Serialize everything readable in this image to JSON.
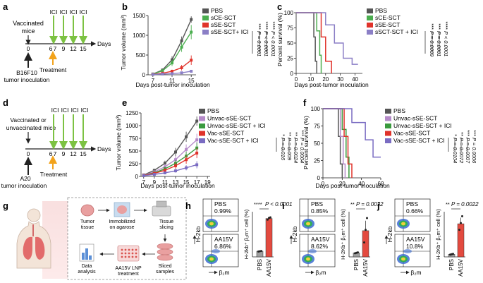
{
  "panels": {
    "a": {
      "letter": "a",
      "title_lines": [
        "Vaccinated",
        "mice"
      ],
      "ici": [
        "ICI",
        "ICI",
        "ICI",
        "ICI"
      ],
      "ticks": [
        "0",
        "6",
        "7",
        "9",
        "12",
        "15"
      ],
      "axis_end": "Days",
      "bottom_lines": [
        "B16F10",
        "tumor inoculation"
      ],
      "treatment": "Treatment"
    },
    "d": {
      "letter": "d",
      "title_lines": [
        "Vaccinated or",
        "unvaccinated mice"
      ],
      "ici": [
        "ICI",
        "ICI",
        "ICI",
        "ICI"
      ],
      "ticks": [
        "0",
        "6",
        "7",
        "9",
        "12",
        "15"
      ],
      "axis_end": "Days",
      "bottom_lines": [
        "A20",
        "tumor inoculation"
      ],
      "treatment": "Treatment"
    },
    "b": {
      "letter": "b",
      "ylabel": "Tumor volume (mm³)",
      "xlabel": "Days post-tumor inoculation",
      "yticks": [
        "0",
        "500",
        "1000",
        "1500"
      ],
      "xticks": [
        "7",
        "11",
        "15"
      ],
      "legend": [
        "PBS",
        "sCE-SCT",
        "sSE-SCT",
        "sSE-SCT+ ICI"
      ],
      "pvals": [
        "P = 0.0001",
        "P < 0.0001",
        "P < 0.0001"
      ],
      "stars": [
        "***",
        "****",
        "****"
      ]
    },
    "c": {
      "letter": "c",
      "ylabel": "Percent survival (%)",
      "xlabel": "Days post-tumor inoculation",
      "yticks": [
        "0",
        "25",
        "50",
        "75",
        "100"
      ],
      "xticks": [
        "0",
        "10",
        "20",
        "30",
        "40"
      ],
      "legend": [
        "PBS",
        "sCE-SCT",
        "sSE-SCT",
        "sSCT-SCT + ICI"
      ],
      "pvals": [
        "P = 0.0009",
        "P = 0.0001",
        "P < 0.0001"
      ],
      "stars": [
        "***",
        "***",
        "****"
      ]
    },
    "e": {
      "letter": "e",
      "ylabel": "Tumor volume (mm³)",
      "xlabel": "Days post-tumor inoculation",
      "yticks": [
        "0",
        "250",
        "500",
        "750",
        "1000",
        "1250"
      ],
      "xticks": [
        "7",
        "9",
        "11",
        "13",
        "15",
        "17",
        "19"
      ],
      "legend": [
        "PBS",
        "Unvac-sSE-SCT",
        "Unvac-sSE-SCT + ICI",
        "Vac-sSE-SCT",
        "Vac-sSE-SCT + ICI"
      ],
      "pvals": [
        "P = 0.016",
        "P = 0.009",
        "P = 0.0024",
        "P = 0.0004"
      ],
      "stars": [
        "*",
        "**",
        "**",
        "***"
      ]
    },
    "f": {
      "letter": "f",
      "ylabel": "Percent survival (%)",
      "xlabel": "Days post-tumor inoculation",
      "yticks": [
        "0",
        "25",
        "50",
        "75",
        "100"
      ],
      "xticks": [
        "0",
        "20",
        "40",
        "60"
      ],
      "legend": [
        "PBS",
        "Unvac-sSE-SCT",
        "Unvac-sSE-SCT + ICI",
        "Vac-sSE-SCT",
        "Vac-sSE-SCT + ICI"
      ],
      "pvals": [
        "P = 0.0104",
        "P = 0.0072",
        "P = 0.0007",
        "P = 0.0006"
      ],
      "stars": [
        "*",
        "**",
        "***",
        "***"
      ]
    },
    "g": {
      "letter": "g",
      "steps": [
        "Tumor tissue",
        "Immobilized on agarose",
        "Tissue slicing",
        "Sliced samples",
        "AA15V LNP treatment",
        "Data analysis"
      ]
    },
    "h": {
      "letter": "h",
      "top_label": "PBS",
      "top_pct": "0.99%",
      "bot_label": "AA15V",
      "bot_pct": "6.86%",
      "flow_y": "H-2kb",
      "flow_x": "β₂m",
      "bar_ylabel": "H-2kb⁺ β₂m⁺ cell (%)",
      "bar_cats": [
        "PBS",
        "AA15V"
      ],
      "pval": "P < 0.0001",
      "stars": "****"
    },
    "i": {
      "letter": "i",
      "top_label": "PBS",
      "top_pct": "0.85%",
      "bot_label": "AA15V",
      "bot_pct": "8.62%",
      "flow_y": "H-2kb",
      "flow_x": "β₂m",
      "bar_ylabel": "H-2Kb⁺ β₂m⁺ cell (%)",
      "bar_cats": [
        "PBS",
        "AA15V"
      ],
      "pval": "P = 0.0032",
      "stars": "**"
    },
    "j": {
      "letter": "j",
      "top_label": "PBS",
      "top_pct": "0.66%",
      "bot_label": "AA15V",
      "bot_pct": "10.8%",
      "flow_y": "H-2kb",
      "flow_x": "β₂m",
      "bar_ylabel": "H-2Kb⁺ β₂m⁺ cell (%)",
      "bar_cats": [
        "PBS",
        "AA15V"
      ],
      "pval": "P = 0.0022",
      "stars": "**"
    }
  },
  "colors": {
    "pbs": "#555555",
    "sce": "#4bae4f",
    "sse": "#e0332b",
    "ici": "#8b7fc6",
    "unvac": "#b58ac9",
    "unvac_ici": "#3a9a3e",
    "vac": "#e0332b",
    "vac_ici": "#7a6cc2",
    "arrow_green": "#7cc242",
    "arrow_orange": "#f2a31c",
    "bar_red": "#e34a3f"
  },
  "chart_data": [
    {
      "id": "b",
      "type": "line",
      "x": [
        7,
        9,
        11,
        13,
        15
      ],
      "ylim": [
        0,
        1500
      ],
      "xlim": [
        6,
        16
      ],
      "series": [
        {
          "name": "PBS",
          "values": [
            20,
            120,
            380,
            860,
            1400
          ],
          "err": [
            10,
            40,
            90,
            110,
            80
          ]
        },
        {
          "name": "sCE-SCT",
          "values": [
            20,
            100,
            300,
            700,
            1080
          ],
          "err": [
            10,
            40,
            80,
            120,
            180
          ]
        },
        {
          "name": "sSE-SCT",
          "values": [
            15,
            40,
            90,
            180,
            370
          ],
          "err": [
            8,
            20,
            40,
            70,
            120
          ]
        },
        {
          "name": "sSE-SCT+ ICI",
          "values": [
            10,
            20,
            30,
            50,
            90
          ],
          "err": [
            5,
            10,
            15,
            20,
            30
          ]
        }
      ]
    },
    {
      "id": "c",
      "type": "line",
      "x_range": [
        0,
        45
      ],
      "ylim": [
        0,
        100
      ],
      "series": [
        {
          "name": "PBS",
          "steps": [
            [
              0,
              100
            ],
            [
              12,
              100
            ],
            [
              12,
              60
            ],
            [
              13,
              60
            ],
            [
              13,
              20
            ],
            [
              14,
              20
            ],
            [
              14,
              0
            ]
          ]
        },
        {
          "name": "sCE-SCT",
          "steps": [
            [
              0,
              100
            ],
            [
              14,
              100
            ],
            [
              14,
              70
            ],
            [
              16,
              70
            ],
            [
              16,
              30
            ],
            [
              17,
              30
            ],
            [
              17,
              0
            ]
          ]
        },
        {
          "name": "sSE-SCT",
          "steps": [
            [
              0,
              100
            ],
            [
              17,
              100
            ],
            [
              17,
              60
            ],
            [
              20,
              60
            ],
            [
              20,
              20
            ],
            [
              24,
              20
            ],
            [
              24,
              0
            ]
          ]
        },
        {
          "name": "sSCT-SCT + ICI",
          "steps": [
            [
              0,
              100
            ],
            [
              20,
              100
            ],
            [
              20,
              80
            ],
            [
              26,
              80
            ],
            [
              26,
              50
            ],
            [
              32,
              50
            ],
            [
              32,
              25
            ],
            [
              38,
              25
            ],
            [
              38,
              15
            ],
            [
              42,
              15
            ]
          ]
        }
      ]
    },
    {
      "id": "e",
      "type": "line",
      "x": [
        7,
        9,
        11,
        13,
        15,
        17
      ],
      "ylim": [
        0,
        1250
      ],
      "xlim": [
        6.5,
        19.5
      ],
      "series": [
        {
          "name": "PBS",
          "values": [
            30,
            120,
            260,
            480,
            780,
            1090
          ],
          "err": [
            10,
            30,
            50,
            80,
            100,
            90
          ]
        },
        {
          "name": "Unvac-sSE-SCT",
          "values": [
            25,
            90,
            190,
            330,
            530,
            720
          ],
          "err": [
            10,
            30,
            50,
            70,
            100,
            120
          ]
        },
        {
          "name": "Unvac-sSE-SCT + ICI",
          "values": [
            20,
            70,
            150,
            260,
            400,
            560
          ],
          "err": [
            10,
            25,
            40,
            60,
            90,
            110
          ]
        },
        {
          "name": "Vac-sSE-SCT",
          "values": [
            20,
            60,
            120,
            210,
            330,
            460
          ],
          "err": [
            8,
            20,
            40,
            60,
            80,
            100
          ]
        },
        {
          "name": "Vac-sSE-SCT + ICI",
          "values": [
            15,
            40,
            70,
            110,
            170,
            230
          ],
          "err": [
            5,
            15,
            25,
            35,
            50,
            70
          ]
        }
      ]
    },
    {
      "id": "f",
      "type": "line",
      "x_range": [
        0,
        60
      ],
      "ylim": [
        0,
        100
      ],
      "series": [
        {
          "name": "PBS",
          "steps": [
            [
              0,
              100
            ],
            [
              16,
              100
            ],
            [
              16,
              60
            ],
            [
              18,
              60
            ],
            [
              18,
              20
            ],
            [
              20,
              20
            ],
            [
              20,
              0
            ]
          ]
        },
        {
          "name": "Unvac-sSE-SCT",
          "steps": [
            [
              0,
              100
            ],
            [
              18,
              100
            ],
            [
              18,
              60
            ],
            [
              21,
              60
            ],
            [
              21,
              20
            ],
            [
              23,
              20
            ],
            [
              23,
              0
            ]
          ]
        },
        {
          "name": "Unvac-sSE-SCT + ICI",
          "steps": [
            [
              0,
              100
            ],
            [
              20,
              100
            ],
            [
              20,
              70
            ],
            [
              24,
              70
            ],
            [
              24,
              30
            ],
            [
              27,
              30
            ],
            [
              27,
              0
            ]
          ]
        },
        {
          "name": "Vac-sSE-SCT",
          "steps": [
            [
              0,
              100
            ],
            [
              22,
              100
            ],
            [
              22,
              60
            ],
            [
              26,
              60
            ],
            [
              26,
              20
            ],
            [
              30,
              20
            ],
            [
              30,
              0
            ]
          ]
        },
        {
          "name": "Vac-sSE-SCT + ICI",
          "steps": [
            [
              0,
              100
            ],
            [
              30,
              100
            ],
            [
              30,
              80
            ],
            [
              44,
              80
            ],
            [
              44,
              55
            ],
            [
              52,
              55
            ],
            [
              52,
              30
            ],
            [
              60,
              30
            ]
          ]
        }
      ]
    },
    {
      "id": "h",
      "type": "bar",
      "categories": [
        "PBS",
        "AA15V"
      ],
      "values": [
        1.0,
        6.8
      ],
      "err": [
        0.1,
        0.15
      ],
      "points": [
        [
          0.95,
          1.0,
          1.05
        ],
        [
          6.6,
          6.9,
          7.0
        ]
      ],
      "ylim": [
        0,
        8
      ]
    },
    {
      "id": "i",
      "type": "bar",
      "categories": [
        "PBS",
        "AA15V"
      ],
      "values": [
        0.9,
        5.8
      ],
      "err": [
        0.15,
        2.2
      ],
      "points": [
        [
          0.8,
          0.9,
          1.0
        ],
        [
          3.2,
          6.0,
          8.6
        ]
      ],
      "ylim": [
        0,
        10
      ]
    },
    {
      "id": "j",
      "type": "bar",
      "categories": [
        "PBS",
        "AA15V"
      ],
      "values": [
        0.7,
        8.8
      ],
      "err": [
        0.1,
        1.6
      ],
      "points": [
        [
          0.6,
          0.7,
          0.8
        ],
        [
          7.2,
          9.0,
          10.8
        ]
      ],
      "ylim": [
        0,
        12
      ]
    }
  ]
}
